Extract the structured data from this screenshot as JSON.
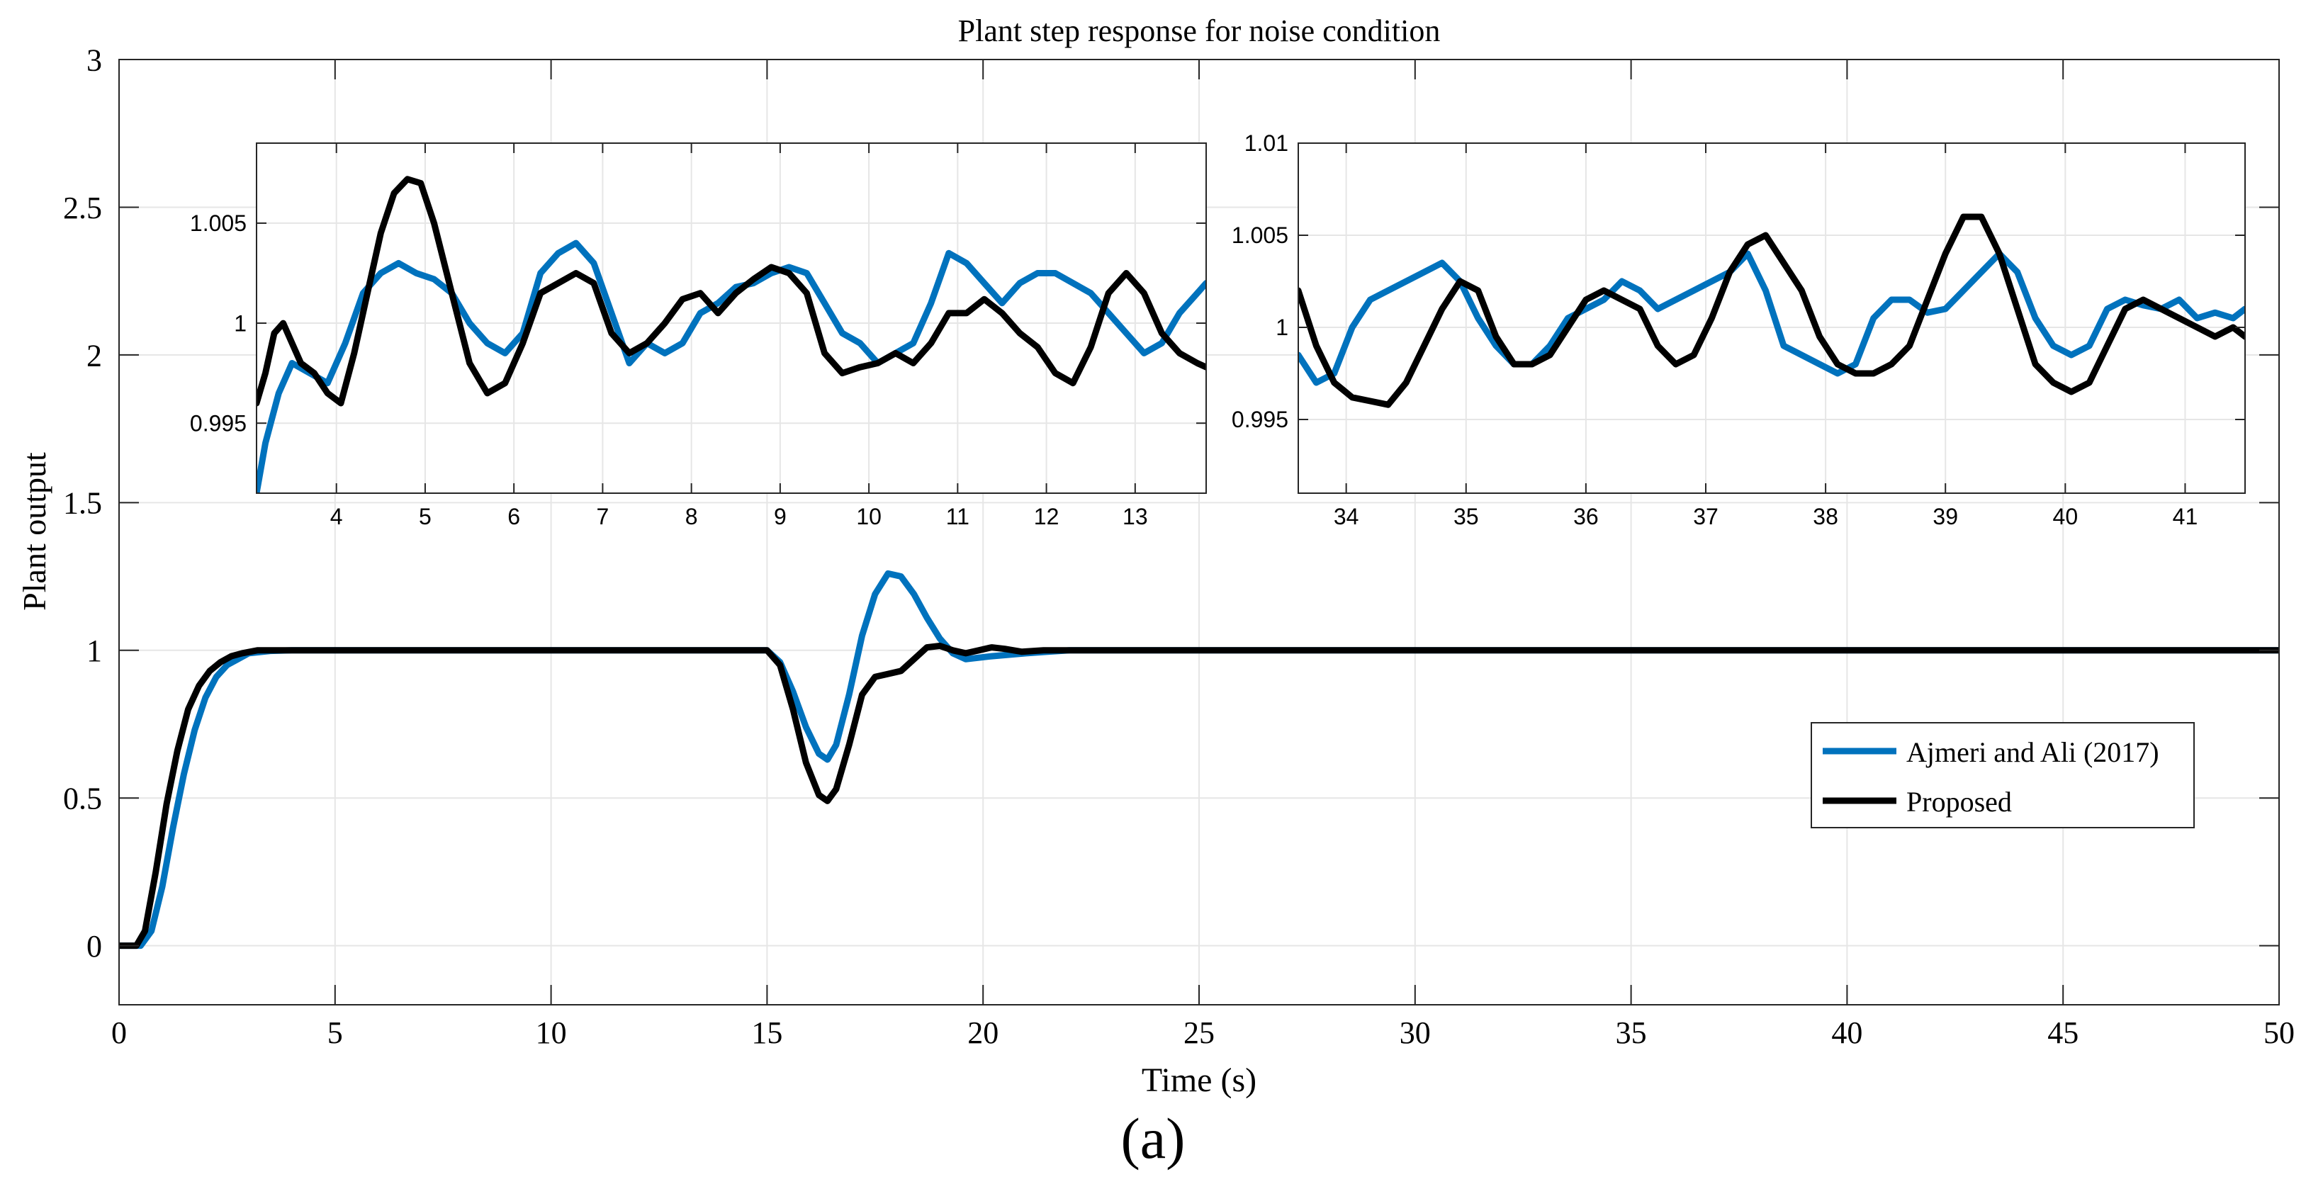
{
  "caption": "(a)",
  "colors": {
    "ajmeri": "#0072BD",
    "proposed": "#000000",
    "grid": "#e6e6e6",
    "axis": "#262626"
  },
  "chart_data": [
    {
      "id": "main",
      "type": "line",
      "title": "Plant step response for noise condition",
      "xlabel": "Time (s)",
      "ylabel": "Plant output",
      "xlim": [
        0,
        50
      ],
      "ylim": [
        -0.2,
        3
      ],
      "xticks": [
        0,
        5,
        10,
        15,
        20,
        25,
        30,
        35,
        40,
        45,
        50
      ],
      "yticks": [
        0,
        0.5,
        1,
        1.5,
        2,
        2.5,
        3
      ],
      "xtick_labels": [
        "0",
        "5",
        "10",
        "15",
        "20",
        "25",
        "30",
        "35",
        "40",
        "45",
        "50"
      ],
      "ytick_labels": [
        "0",
        "0.5",
        "1",
        "1.5",
        "2",
        "2.5",
        "3"
      ],
      "grid": true,
      "legend": {
        "placement": "right-middle",
        "entries": [
          "Ajmeri and Ali (2017)",
          "Proposed"
        ]
      },
      "series": [
        {
          "name": "Ajmeri and Ali (2017)",
          "color": "#0072BD",
          "x": [
            0,
            0.5,
            0.75,
            1.0,
            1.25,
            1.5,
            1.75,
            2.0,
            2.25,
            2.5,
            2.75,
            3.0,
            3.5,
            4,
            5,
            10,
            15,
            15.3,
            15.6,
            15.9,
            16.2,
            16.4,
            16.6,
            16.9,
            17.2,
            17.5,
            17.8,
            18.1,
            18.4,
            18.7,
            19.0,
            19.3,
            19.6,
            19.9,
            20.2,
            20.6,
            21.0,
            21.5,
            22,
            25,
            30,
            35,
            40,
            45,
            50
          ],
          "y": [
            0,
            0.0,
            0.05,
            0.2,
            0.4,
            0.58,
            0.73,
            0.84,
            0.91,
            0.95,
            0.97,
            0.99,
            0.998,
            1.0,
            1.0,
            1.0,
            1.0,
            0.96,
            0.86,
            0.74,
            0.65,
            0.63,
            0.68,
            0.85,
            1.05,
            1.19,
            1.26,
            1.25,
            1.19,
            1.11,
            1.04,
            0.99,
            0.97,
            0.975,
            0.98,
            0.985,
            0.99,
            0.995,
            1.0,
            1.0,
            1.0,
            1.0,
            1.0,
            1.0,
            1.0
          ]
        },
        {
          "name": "Proposed",
          "color": "#000000",
          "x": [
            0,
            0.4,
            0.6,
            0.85,
            1.1,
            1.35,
            1.6,
            1.85,
            2.1,
            2.35,
            2.6,
            2.85,
            3.2,
            4,
            5,
            10,
            15,
            15.3,
            15.6,
            15.9,
            16.2,
            16.4,
            16.6,
            16.9,
            17.2,
            17.5,
            17.8,
            18.1,
            18.4,
            18.7,
            19.0,
            19.3,
            19.6,
            19.9,
            20.2,
            20.5,
            20.9,
            21.4,
            22,
            25,
            30,
            35,
            40,
            45,
            50
          ],
          "y": [
            0,
            0.0,
            0.05,
            0.25,
            0.48,
            0.66,
            0.8,
            0.88,
            0.93,
            0.96,
            0.98,
            0.99,
            1.0,
            1.0,
            1.0,
            1.0,
            1.0,
            0.95,
            0.8,
            0.62,
            0.51,
            0.49,
            0.53,
            0.68,
            0.85,
            0.91,
            0.92,
            0.93,
            0.97,
            1.01,
            1.015,
            1.0,
            0.99,
            1.0,
            1.01,
            1.005,
            0.995,
            1.0,
            1.0,
            1.0,
            1.0,
            1.0,
            1.0,
            1.0,
            1.0
          ]
        }
      ]
    },
    {
      "id": "inset-left",
      "type": "line",
      "xlim": [
        3.1,
        13.8
      ],
      "ylim": [
        0.9915,
        1.009
      ],
      "xticks": [
        4,
        5,
        6,
        7,
        8,
        9,
        10,
        11,
        12,
        13
      ],
      "yticks": [
        0.995,
        1.0,
        1.005
      ],
      "xtick_labels": [
        "4",
        "5",
        "6",
        "7",
        "8",
        "9",
        "10",
        "11",
        "12",
        "13"
      ],
      "ytick_labels": [
        "0.995",
        "1",
        "1.005"
      ],
      "grid": true,
      "series": [
        {
          "name": "Ajmeri and Ali (2017)",
          "color": "#0072BD",
          "x": [
            3.1,
            3.2,
            3.35,
            3.5,
            3.7,
            3.9,
            4.1,
            4.3,
            4.5,
            4.7,
            4.9,
            5.1,
            5.3,
            5.5,
            5.7,
            5.9,
            6.1,
            6.3,
            6.5,
            6.7,
            6.9,
            7.1,
            7.3,
            7.5,
            7.7,
            7.9,
            8.1,
            8.3,
            8.5,
            8.7,
            8.9,
            9.1,
            9.3,
            9.5,
            9.7,
            9.9,
            10.1,
            10.3,
            10.5,
            10.7,
            10.9,
            11.1,
            11.3,
            11.5,
            11.7,
            11.9,
            12.1,
            12.3,
            12.5,
            12.7,
            12.9,
            13.1,
            13.3,
            13.5,
            13.7,
            13.8
          ],
          "y": [
            0.9915,
            0.994,
            0.9965,
            0.998,
            0.9975,
            0.997,
            0.999,
            1.0015,
            1.0025,
            1.003,
            1.0025,
            1.0022,
            1.0015,
            1.0,
            0.999,
            0.9985,
            0.9995,
            1.0025,
            1.0035,
            1.004,
            1.003,
            1.0005,
            0.998,
            0.999,
            0.9985,
            0.999,
            1.0005,
            1.001,
            1.0018,
            1.002,
            1.0025,
            1.0028,
            1.0025,
            1.001,
            0.9995,
            0.999,
            0.998,
            0.9985,
            0.999,
            1.001,
            1.0035,
            1.003,
            1.002,
            1.001,
            1.002,
            1.0025,
            1.0025,
            1.002,
            1.0015,
            1.0005,
            0.9995,
            0.9985,
            0.999,
            1.0005,
            1.0015,
            1.002
          ]
        },
        {
          "name": "Proposed",
          "color": "#000000",
          "x": [
            3.1,
            3.2,
            3.3,
            3.4,
            3.5,
            3.6,
            3.75,
            3.9,
            4.05,
            4.2,
            4.35,
            4.5,
            4.65,
            4.8,
            4.95,
            5.1,
            5.3,
            5.5,
            5.7,
            5.9,
            6.1,
            6.3,
            6.5,
            6.7,
            6.9,
            7.1,
            7.3,
            7.5,
            7.7,
            7.9,
            8.1,
            8.3,
            8.5,
            8.7,
            8.9,
            9.1,
            9.3,
            9.5,
            9.7,
            9.9,
            10.1,
            10.3,
            10.5,
            10.7,
            10.9,
            11.1,
            11.3,
            11.5,
            11.7,
            11.9,
            12.1,
            12.3,
            12.5,
            12.7,
            12.9,
            13.1,
            13.3,
            13.5,
            13.7,
            13.8
          ],
          "y": [
            0.996,
            0.9975,
            0.9995,
            1.0,
            0.999,
            0.998,
            0.9975,
            0.9965,
            0.996,
            0.9985,
            1.0015,
            1.0045,
            1.0065,
            1.0072,
            1.007,
            1.005,
            1.0015,
            0.998,
            0.9965,
            0.997,
            0.999,
            1.0015,
            1.002,
            1.0025,
            1.002,
            0.9995,
            0.9985,
            0.999,
            1.0,
            1.0012,
            1.0015,
            1.0005,
            1.0015,
            1.0022,
            1.0028,
            1.0025,
            1.0015,
            0.9985,
            0.9975,
            0.9978,
            0.998,
            0.9985,
            0.998,
            0.999,
            1.0005,
            1.0005,
            1.0012,
            1.0005,
            0.9995,
            0.9988,
            0.9975,
            0.997,
            0.9988,
            1.0015,
            1.0025,
            1.0015,
            0.9995,
            0.9985,
            0.998,
            0.9978
          ]
        }
      ]
    },
    {
      "id": "inset-right",
      "type": "line",
      "xlim": [
        33.6,
        41.5
      ],
      "ylim": [
        0.991,
        1.01
      ],
      "xticks": [
        34,
        35,
        36,
        37,
        38,
        39,
        40,
        41
      ],
      "yticks": [
        0.995,
        1.0,
        1.005,
        1.01
      ],
      "xtick_labels": [
        "34",
        "35",
        "36",
        "37",
        "38",
        "39",
        "40",
        "41"
      ],
      "ytick_labels": [
        "0.995",
        "1",
        "1.005",
        "1.01"
      ],
      "grid": true,
      "series": [
        {
          "name": "Ajmeri and Ali (2017)",
          "color": "#0072BD",
          "x": [
            33.6,
            33.75,
            33.9,
            34.05,
            34.2,
            34.35,
            34.5,
            34.65,
            34.8,
            34.95,
            35.1,
            35.25,
            35.4,
            35.55,
            35.7,
            35.85,
            36.0,
            36.15,
            36.3,
            36.45,
            36.6,
            36.75,
            36.9,
            37.05,
            37.2,
            37.35,
            37.5,
            37.65,
            37.8,
            37.95,
            38.1,
            38.25,
            38.4,
            38.55,
            38.7,
            38.85,
            39.0,
            39.15,
            39.3,
            39.45,
            39.6,
            39.75,
            39.9,
            40.05,
            40.2,
            40.35,
            40.5,
            40.65,
            40.8,
            40.95,
            41.1,
            41.25,
            41.4,
            41.5
          ],
          "y": [
            0.9985,
            0.997,
            0.9975,
            1.0,
            1.0015,
            1.002,
            1.0025,
            1.003,
            1.0035,
            1.0025,
            1.0005,
            0.999,
            0.998,
            0.998,
            0.999,
            1.0005,
            1.001,
            1.0015,
            1.0025,
            1.002,
            1.001,
            1.0015,
            1.002,
            1.0025,
            1.003,
            1.004,
            1.002,
            0.999,
            0.9985,
            0.998,
            0.9975,
            0.998,
            1.0005,
            1.0015,
            1.0015,
            1.0008,
            1.001,
            1.002,
            1.003,
            1.004,
            1.003,
            1.0005,
            0.999,
            0.9985,
            0.999,
            1.001,
            1.0015,
            1.0012,
            1.001,
            1.0015,
            1.0005,
            1.0008,
            1.0005,
            1.001
          ]
        },
        {
          "name": "Proposed",
          "color": "#000000",
          "x": [
            33.6,
            33.75,
            33.9,
            34.05,
            34.2,
            34.35,
            34.5,
            34.65,
            34.8,
            34.95,
            35.1,
            35.25,
            35.4,
            35.55,
            35.7,
            35.85,
            36.0,
            36.15,
            36.3,
            36.45,
            36.6,
            36.75,
            36.9,
            37.05,
            37.2,
            37.35,
            37.5,
            37.65,
            37.8,
            37.95,
            38.1,
            38.25,
            38.4,
            38.55,
            38.7,
            38.85,
            39.0,
            39.15,
            39.3,
            39.45,
            39.6,
            39.75,
            39.9,
            40.05,
            40.2,
            40.35,
            40.5,
            40.65,
            40.8,
            40.95,
            41.1,
            41.25,
            41.4,
            41.5
          ],
          "y": [
            1.002,
            0.999,
            0.997,
            0.9962,
            0.996,
            0.9958,
            0.997,
            0.999,
            1.001,
            1.0025,
            1.002,
            0.9995,
            0.998,
            0.998,
            0.9985,
            1.0,
            1.0015,
            1.002,
            1.0015,
            1.001,
            0.999,
            0.998,
            0.9985,
            1.0005,
            1.003,
            1.0045,
            1.005,
            1.0035,
            1.002,
            0.9995,
            0.998,
            0.9975,
            0.9975,
            0.998,
            0.999,
            1.0015,
            1.004,
            1.006,
            1.006,
            1.004,
            1.001,
            0.998,
            0.997,
            0.9965,
            0.997,
            0.999,
            1.001,
            1.0015,
            1.001,
            1.0005,
            1.0,
            0.9995,
            1.0,
            0.9995
          ]
        }
      ]
    }
  ]
}
